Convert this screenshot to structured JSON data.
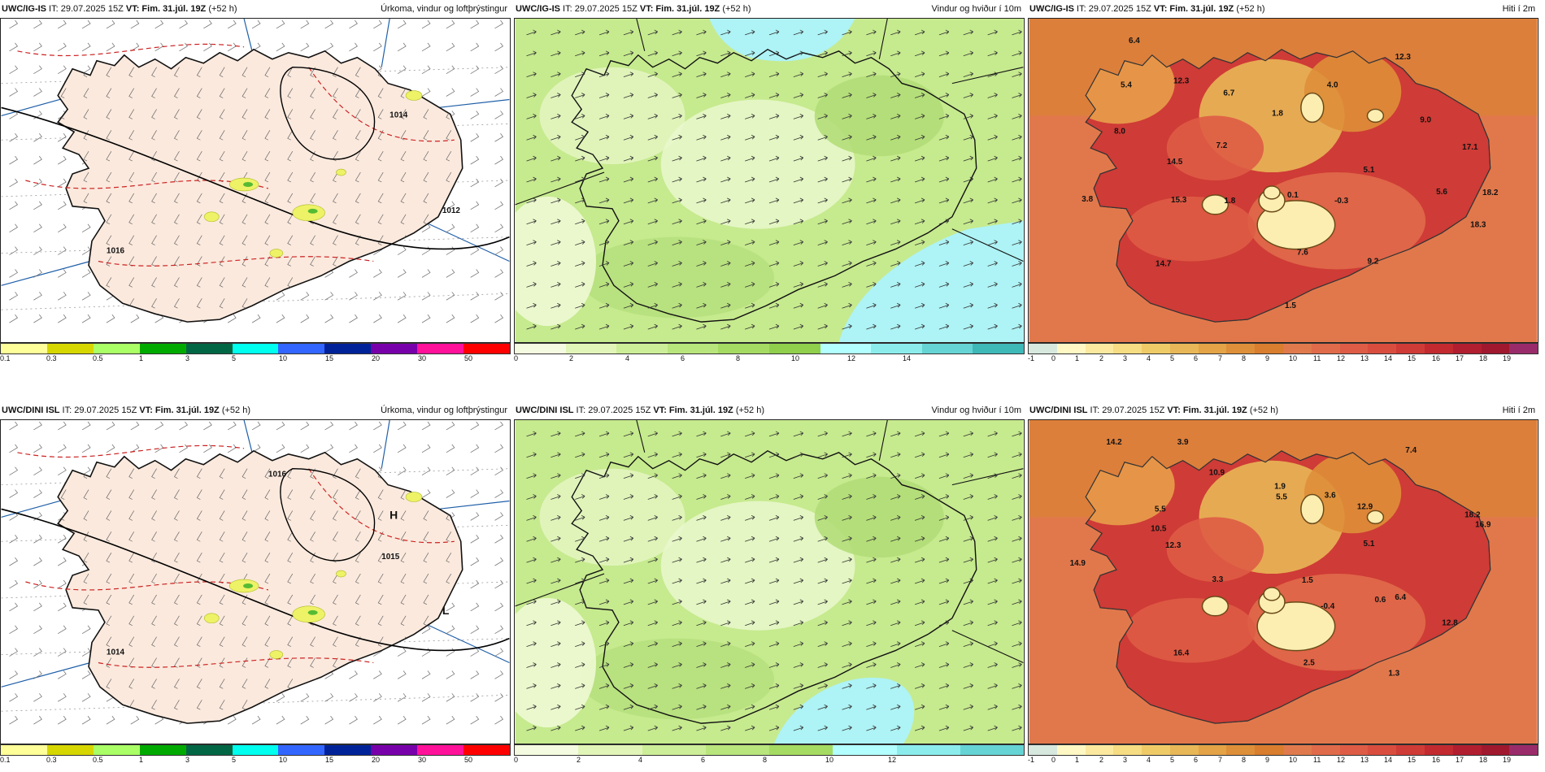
{
  "panels": [
    {
      "model": "UWC/IG-IS",
      "it": "IT: 29.07.2025 15Z",
      "vt_label": "VT:",
      "vt": "Fim. 31.júl. 19Z",
      "lead": "(+52 h)",
      "title": "Úrkoma, vindur og loftþrýstingur",
      "type": "precip",
      "colorbar": {
        "colors": [
          "#ffff99",
          "#d6d600",
          "#aaff66",
          "#00aa00",
          "#006644",
          "#00ffee",
          "#3366ff",
          "#002299",
          "#7700aa",
          "#ff1199",
          "#ff0000"
        ],
        "labels": [
          "0.1",
          "0.3",
          "0.5",
          "1",
          "3",
          "5",
          "10",
          "15",
          "20",
          "30",
          "50"
        ]
      },
      "pressure_labels": [
        "1014",
        "1012",
        "1016"
      ],
      "values": []
    },
    {
      "model": "UWC/IG-IS",
      "it": "IT: 29.07.2025 15Z",
      "vt_label": "VT:",
      "vt": "Fim. 31.júl. 19Z",
      "lead": "(+52 h)",
      "title": "Vindur og hviður í 10m",
      "type": "wind",
      "colorbar": {
        "colors": [
          "#f5fbe0",
          "#e2f5b8",
          "#cdee98",
          "#b8e57c",
          "#a5db62",
          "#8fcf4c",
          "#b3ffff",
          "#8cecec",
          "#66d4d4",
          "#3fb8b8"
        ],
        "labels": [
          "0",
          "2",
          "4",
          "6",
          "8",
          "10",
          "12",
          "14"
        ]
      },
      "values": []
    },
    {
      "model": "UWC/IG-IS",
      "it": "IT: 29.07.2025 15Z",
      "vt_label": "VT:",
      "vt": "Fim. 31.júl. 19Z",
      "lead": "(+52 h)",
      "title": "Hiti í 2m",
      "type": "temp",
      "colorbar": {
        "colors": [
          "#d7e8df",
          "#fff8c4",
          "#fbe9a0",
          "#f6dc82",
          "#efcb68",
          "#e8b757",
          "#e3a346",
          "#de8f39",
          "#d97d2e",
          "#e07a4d",
          "#e06b4a",
          "#de5c45",
          "#d94d3f",
          "#cf3b36",
          "#c22a30",
          "#b11e2f",
          "#a0182e",
          "#9a2b6a"
        ],
        "labels": [
          "-1",
          "0",
          "1",
          "2",
          "3",
          "4",
          "5",
          "6",
          "7",
          "8",
          "9",
          "10",
          "11",
          "12",
          "13",
          "14",
          "15",
          "16",
          "17",
          "18",
          "19"
        ]
      },
      "values": [
        "6.4",
        "5.4",
        "12.3",
        "6.7",
        "4.0",
        "12.3",
        "8.0",
        "1.8",
        "9.0",
        "7.2",
        "17.1",
        "14.5",
        "5.1",
        "3.8",
        "15.3",
        "1.8",
        "0.1",
        "-0.3",
        "5.6",
        "18.2",
        "18.3",
        "7.6",
        "14.7",
        "9.2",
        "1.5"
      ]
    },
    {
      "model": "UWC/DINI ISL",
      "it": "IT: 29.07.2025 15Z",
      "vt_label": "VT:",
      "vt": "Fim. 31.júl. 19Z",
      "lead": "(+52 h)",
      "title": "Úrkoma, vindur og loftþrýstingur",
      "type": "precip",
      "colorbar": {
        "colors": [
          "#ffff99",
          "#d6d600",
          "#aaff66",
          "#00aa00",
          "#006644",
          "#00ffee",
          "#3366ff",
          "#002299",
          "#7700aa",
          "#ff1199",
          "#ff0000"
        ],
        "labels": [
          "0.1",
          "0.3",
          "0.5",
          "1",
          "3",
          "5",
          "10",
          "15",
          "20",
          "30",
          "50"
        ]
      },
      "pressure_labels": [
        "H",
        "L",
        "1014",
        "1016",
        "1015"
      ],
      "values": []
    },
    {
      "model": "UWC/DINI ISL",
      "it": "IT: 29.07.2025 15Z",
      "vt_label": "VT:",
      "vt": "Fim. 31.júl. 19Z",
      "lead": "(+52 h)",
      "title": "Vindur og hviður í 10m",
      "type": "wind",
      "colorbar": {
        "colors": [
          "#f5fbe0",
          "#e2f5b8",
          "#cdee98",
          "#b8e57c",
          "#a5db62",
          "#b3ffff",
          "#8cecec",
          "#66d4d4"
        ],
        "labels": [
          "0",
          "2",
          "4",
          "6",
          "8",
          "10",
          "12"
        ]
      },
      "values": []
    },
    {
      "model": "UWC/DINI ISL",
      "it": "IT: 29.07.2025 15Z",
      "vt_label": "VT:",
      "vt": "Fim. 31.júl. 19Z",
      "lead": "(+52 h)",
      "title": "Hiti í 2m",
      "type": "temp",
      "colorbar": {
        "colors": [
          "#d7e8df",
          "#fff8c4",
          "#fbe9a0",
          "#f6dc82",
          "#efcb68",
          "#e8b757",
          "#e3a346",
          "#de8f39",
          "#d97d2e",
          "#e07a4d",
          "#e06b4a",
          "#de5c45",
          "#d94d3f",
          "#cf3b36",
          "#c22a30",
          "#b11e2f",
          "#a0182e",
          "#9a2b6a"
        ],
        "labels": [
          "-1",
          "0",
          "1",
          "2",
          "3",
          "4",
          "5",
          "6",
          "7",
          "8",
          "9",
          "10",
          "11",
          "12",
          "13",
          "14",
          "15",
          "16",
          "17",
          "18",
          "19"
        ]
      },
      "values": [
        "14.2",
        "3.9",
        "10.9",
        "1.9",
        "3.6",
        "7.4",
        "5.5",
        "5.5",
        "12.9",
        "10.5",
        "18.2",
        "12.3",
        "5.1",
        "14.9",
        "3.3",
        "1.5",
        "0.6",
        "-0.4",
        "6.4",
        "16.9",
        "12.8",
        "2.5",
        "16.4",
        "1.3"
      ]
    }
  ]
}
